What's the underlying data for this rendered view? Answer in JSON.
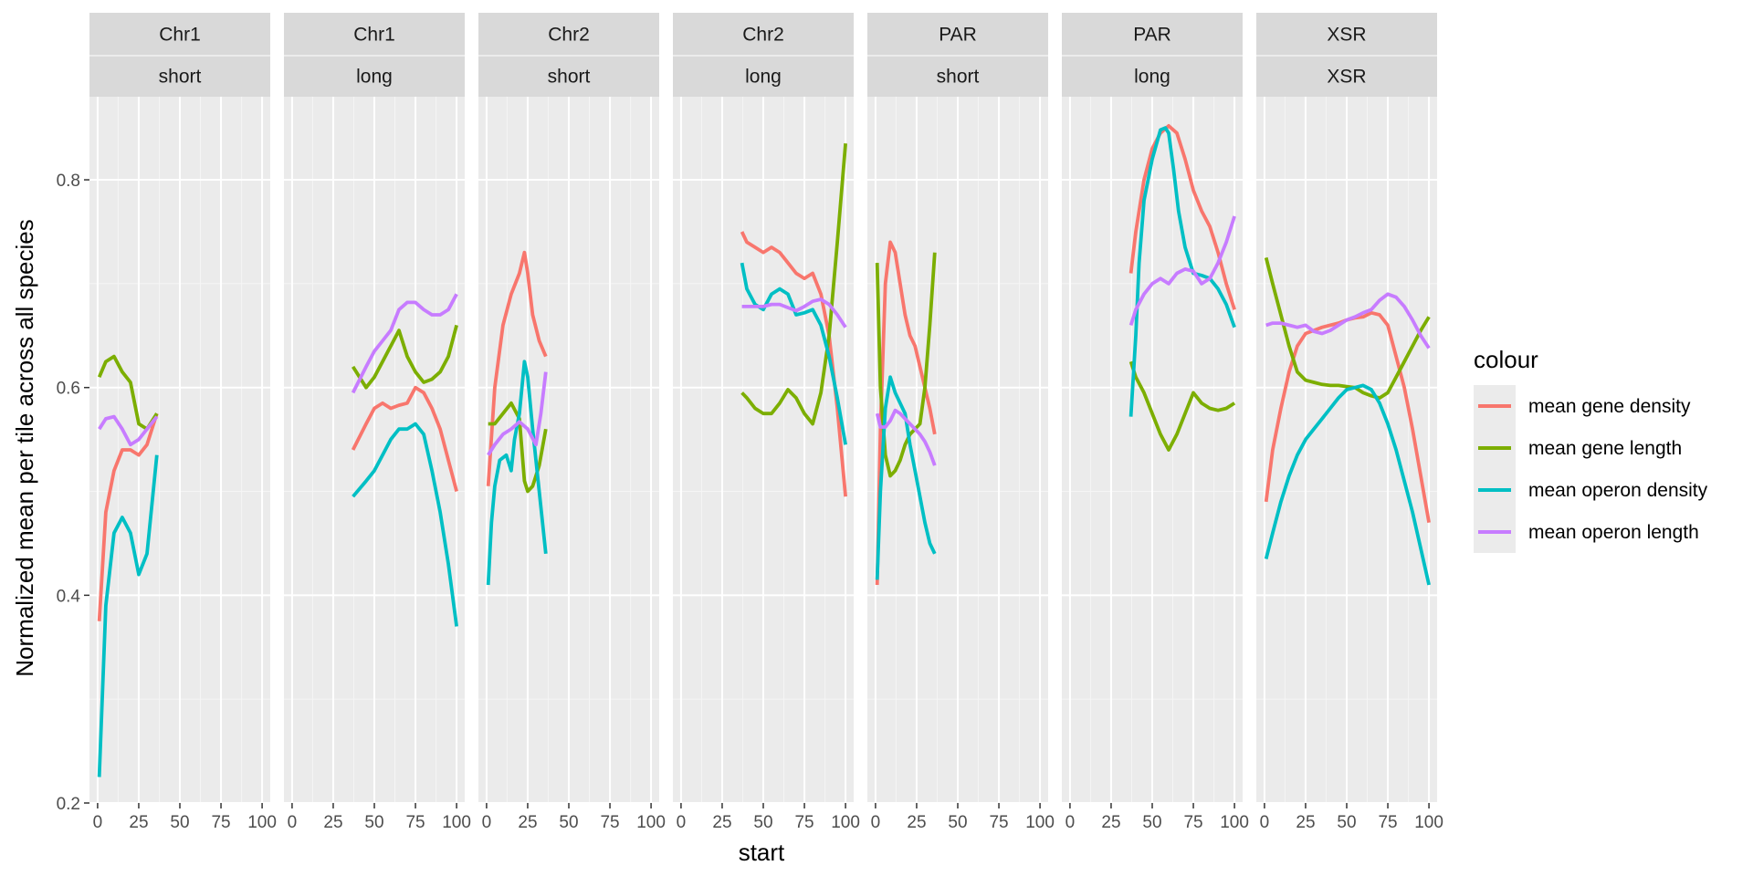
{
  "chart_data": {
    "type": "line",
    "xlabel": "start",
    "ylabel": "Normalized mean per tile across all species",
    "xlim": [
      0,
      100
    ],
    "ylim": [
      0.2,
      0.88
    ],
    "x_ticks": [
      0,
      25,
      50,
      75,
      100
    ],
    "x_tick_labels": [
      "0",
      "25",
      "50",
      "75",
      "100"
    ],
    "y_ticks": [
      0.2,
      0.4,
      0.6,
      0.8
    ],
    "y_tick_labels": [
      "0.2",
      "0.4",
      "0.6",
      "0.8"
    ],
    "grid": true,
    "legend_placement": "right",
    "legend": {
      "title": "colour",
      "entries": [
        {
          "label": "mean gene density",
          "color": "#F8766D"
        },
        {
          "label": "mean gene length",
          "color": "#7CAE00"
        },
        {
          "label": "mean operon density",
          "color": "#00BFC4"
        },
        {
          "label": "mean operon length",
          "color": "#C77CFF"
        }
      ]
    },
    "panels": [
      {
        "strip_top": "Chr1",
        "strip_bottom": "short",
        "series": [
          {
            "name": "mean gene density",
            "x": [
              1,
              5,
              10,
              15,
              20,
              25,
              30,
              36
            ],
            "y": [
              0.375,
              0.48,
              0.52,
              0.54,
              0.54,
              0.535,
              0.545,
              0.575
            ]
          },
          {
            "name": "mean gene length",
            "x": [
              1,
              5,
              10,
              15,
              20,
              25,
              30,
              36
            ],
            "y": [
              0.61,
              0.625,
              0.63,
              0.615,
              0.605,
              0.565,
              0.56,
              0.575
            ]
          },
          {
            "name": "mean operon density",
            "x": [
              1,
              5,
              10,
              15,
              20,
              25,
              30,
              36
            ],
            "y": [
              0.225,
              0.39,
              0.46,
              0.475,
              0.46,
              0.42,
              0.44,
              0.535
            ]
          },
          {
            "name": "mean operon length",
            "x": [
              1,
              5,
              10,
              15,
              20,
              25,
              30,
              36
            ],
            "y": [
              0.56,
              0.57,
              0.572,
              0.56,
              0.545,
              0.55,
              0.56,
              0.572
            ]
          }
        ]
      },
      {
        "strip_top": "Chr1",
        "strip_bottom": "long",
        "series": [
          {
            "name": "mean gene density",
            "x": [
              37,
              45,
              50,
              55,
              60,
              65,
              70,
              75,
              80,
              85,
              90,
              95,
              100
            ],
            "y": [
              0.54,
              0.565,
              0.58,
              0.585,
              0.58,
              0.583,
              0.585,
              0.6,
              0.595,
              0.58,
              0.56,
              0.53,
              0.5
            ]
          },
          {
            "name": "mean gene length",
            "x": [
              37,
              45,
              50,
              55,
              60,
              65,
              70,
              75,
              80,
              85,
              90,
              95,
              100
            ],
            "y": [
              0.62,
              0.6,
              0.61,
              0.625,
              0.64,
              0.655,
              0.63,
              0.615,
              0.605,
              0.608,
              0.615,
              0.63,
              0.66
            ]
          },
          {
            "name": "mean operon density",
            "x": [
              37,
              45,
              50,
              55,
              60,
              65,
              70,
              75,
              80,
              85,
              90,
              95,
              100
            ],
            "y": [
              0.495,
              0.51,
              0.52,
              0.535,
              0.55,
              0.56,
              0.56,
              0.565,
              0.555,
              0.52,
              0.48,
              0.43,
              0.37
            ]
          },
          {
            "name": "mean operon length",
            "x": [
              37,
              45,
              50,
              55,
              60,
              65,
              70,
              75,
              80,
              85,
              90,
              95,
              100
            ],
            "y": [
              0.595,
              0.62,
              0.635,
              0.645,
              0.655,
              0.675,
              0.682,
              0.682,
              0.675,
              0.67,
              0.67,
              0.675,
              0.69
            ]
          }
        ]
      },
      {
        "strip_top": "Chr2",
        "strip_bottom": "short",
        "series": [
          {
            "name": "mean gene density",
            "x": [
              1,
              5,
              10,
              15,
              20,
              23,
              25,
              28,
              32,
              36
            ],
            "y": [
              0.505,
              0.6,
              0.66,
              0.69,
              0.71,
              0.73,
              0.71,
              0.67,
              0.645,
              0.63
            ]
          },
          {
            "name": "mean gene length",
            "x": [
              1,
              5,
              10,
              15,
              20,
              23,
              25,
              28,
              32,
              36
            ],
            "y": [
              0.565,
              0.565,
              0.575,
              0.585,
              0.57,
              0.51,
              0.5,
              0.505,
              0.525,
              0.56
            ]
          },
          {
            "name": "mean operon density",
            "x": [
              1,
              3,
              5,
              8,
              12,
              15,
              17,
              20,
              23,
              25,
              28,
              32,
              36
            ],
            "y": [
              0.41,
              0.47,
              0.505,
              0.53,
              0.535,
              0.52,
              0.55,
              0.575,
              0.625,
              0.61,
              0.56,
              0.5,
              0.44
            ]
          },
          {
            "name": "mean operon length",
            "x": [
              1,
              5,
              10,
              15,
              20,
              25,
              30,
              33,
              36
            ],
            "y": [
              0.535,
              0.545,
              0.555,
              0.56,
              0.567,
              0.56,
              0.545,
              0.575,
              0.615
            ]
          }
        ]
      },
      {
        "strip_top": "Chr2",
        "strip_bottom": "long",
        "series": [
          {
            "name": "mean gene density",
            "x": [
              37,
              40,
              45,
              50,
              55,
              60,
              65,
              70,
              75,
              80,
              85,
              90,
              95,
              100
            ],
            "y": [
              0.75,
              0.74,
              0.735,
              0.73,
              0.735,
              0.73,
              0.72,
              0.71,
              0.705,
              0.71,
              0.69,
              0.65,
              0.58,
              0.495
            ]
          },
          {
            "name": "mean gene length",
            "x": [
              37,
              40,
              45,
              50,
              55,
              60,
              65,
              70,
              75,
              80,
              85,
              90,
              95,
              100
            ],
            "y": [
              0.595,
              0.59,
              0.58,
              0.575,
              0.575,
              0.585,
              0.598,
              0.59,
              0.575,
              0.565,
              0.595,
              0.65,
              0.74,
              0.835
            ]
          },
          {
            "name": "mean operon density",
            "x": [
              37,
              40,
              45,
              50,
              55,
              60,
              65,
              70,
              75,
              80,
              85,
              90,
              95,
              100
            ],
            "y": [
              0.72,
              0.695,
              0.68,
              0.675,
              0.69,
              0.695,
              0.69,
              0.67,
              0.672,
              0.675,
              0.66,
              0.63,
              0.59,
              0.545
            ]
          },
          {
            "name": "mean operon length",
            "x": [
              37,
              45,
              50,
              55,
              60,
              65,
              70,
              75,
              80,
              85,
              90,
              95,
              100
            ],
            "y": [
              0.678,
              0.678,
              0.678,
              0.68,
              0.68,
              0.677,
              0.674,
              0.678,
              0.683,
              0.685,
              0.68,
              0.67,
              0.658
            ]
          }
        ]
      },
      {
        "strip_top": "PAR",
        "strip_bottom": "short",
        "series": [
          {
            "name": "mean gene density",
            "x": [
              1,
              3,
              6,
              9,
              12,
              15,
              18,
              21,
              24,
              27,
              30,
              33,
              36
            ],
            "y": [
              0.41,
              0.56,
              0.7,
              0.74,
              0.73,
              0.7,
              0.67,
              0.65,
              0.64,
              0.62,
              0.6,
              0.58,
              0.555
            ]
          },
          {
            "name": "mean gene length",
            "x": [
              1,
              3,
              6,
              9,
              12,
              15,
              18,
              21,
              24,
              27,
              30,
              33,
              36
            ],
            "y": [
              0.72,
              0.6,
              0.535,
              0.515,
              0.52,
              0.53,
              0.545,
              0.555,
              0.56,
              0.565,
              0.6,
              0.66,
              0.73
            ]
          },
          {
            "name": "mean operon density",
            "x": [
              1,
              3,
              6,
              9,
              12,
              15,
              18,
              21,
              24,
              27,
              30,
              33,
              36
            ],
            "y": [
              0.415,
              0.5,
              0.58,
              0.61,
              0.595,
              0.585,
              0.575,
              0.545,
              0.52,
              0.495,
              0.47,
              0.45,
              0.44
            ]
          },
          {
            "name": "mean operon length",
            "x": [
              1,
              3,
              6,
              9,
              12,
              15,
              18,
              21,
              24,
              27,
              30,
              33,
              36
            ],
            "y": [
              0.575,
              0.562,
              0.562,
              0.568,
              0.578,
              0.575,
              0.57,
              0.565,
              0.56,
              0.555,
              0.548,
              0.538,
              0.525
            ]
          }
        ]
      },
      {
        "strip_top": "PAR",
        "strip_bottom": "long",
        "series": [
          {
            "name": "mean gene density",
            "x": [
              37,
              40,
              45,
              50,
              55,
              60,
              65,
              70,
              75,
              80,
              85,
              90,
              95,
              100
            ],
            "y": [
              0.71,
              0.75,
              0.8,
              0.83,
              0.845,
              0.852,
              0.845,
              0.82,
              0.79,
              0.77,
              0.755,
              0.73,
              0.7,
              0.675
            ]
          },
          {
            "name": "mean gene length",
            "x": [
              37,
              40,
              45,
              50,
              55,
              60,
              65,
              70,
              75,
              80,
              85,
              90,
              95,
              100
            ],
            "y": [
              0.625,
              0.61,
              0.595,
              0.575,
              0.555,
              0.54,
              0.555,
              0.575,
              0.595,
              0.585,
              0.58,
              0.578,
              0.58,
              0.585
            ]
          },
          {
            "name": "mean operon density",
            "x": [
              37,
              40,
              42,
              45,
              50,
              55,
              58,
              60,
              63,
              66,
              70,
              75,
              80,
              85,
              90,
              95,
              100
            ],
            "y": [
              0.572,
              0.65,
              0.72,
              0.78,
              0.82,
              0.848,
              0.85,
              0.845,
              0.81,
              0.77,
              0.735,
              0.71,
              0.708,
              0.705,
              0.695,
              0.68,
              0.658
            ]
          },
          {
            "name": "mean operon length",
            "x": [
              37,
              40,
              45,
              50,
              55,
              60,
              65,
              70,
              75,
              80,
              85,
              90,
              95,
              100
            ],
            "y": [
              0.66,
              0.675,
              0.69,
              0.7,
              0.705,
              0.7,
              0.71,
              0.714,
              0.712,
              0.7,
              0.705,
              0.72,
              0.74,
              0.765
            ]
          }
        ]
      },
      {
        "strip_top": "XSR",
        "strip_bottom": "XSR",
        "series": [
          {
            "name": "mean gene density",
            "x": [
              1,
              5,
              10,
              15,
              20,
              25,
              30,
              35,
              40,
              45,
              50,
              55,
              60,
              65,
              70,
              75,
              80,
              85,
              90,
              95,
              100
            ],
            "y": [
              0.49,
              0.54,
              0.58,
              0.615,
              0.64,
              0.652,
              0.655,
              0.658,
              0.66,
              0.662,
              0.665,
              0.667,
              0.668,
              0.672,
              0.67,
              0.66,
              0.63,
              0.6,
              0.56,
              0.515,
              0.47
            ]
          },
          {
            "name": "mean gene length",
            "x": [
              1,
              5,
              10,
              15,
              20,
              25,
              30,
              35,
              40,
              45,
              50,
              55,
              60,
              65,
              70,
              75,
              80,
              85,
              90,
              95,
              100
            ],
            "y": [
              0.725,
              0.7,
              0.67,
              0.64,
              0.615,
              0.607,
              0.605,
              0.603,
              0.602,
              0.602,
              0.601,
              0.6,
              0.595,
              0.592,
              0.59,
              0.595,
              0.61,
              0.625,
              0.64,
              0.655,
              0.668
            ]
          },
          {
            "name": "mean operon density",
            "x": [
              1,
              5,
              10,
              15,
              20,
              25,
              30,
              35,
              40,
              45,
              50,
              55,
              60,
              65,
              70,
              75,
              80,
              85,
              90,
              95,
              100
            ],
            "y": [
              0.435,
              0.46,
              0.49,
              0.515,
              0.535,
              0.55,
              0.56,
              0.57,
              0.58,
              0.59,
              0.598,
              0.6,
              0.602,
              0.598,
              0.585,
              0.565,
              0.54,
              0.51,
              0.48,
              0.445,
              0.41
            ]
          },
          {
            "name": "mean operon length",
            "x": [
              1,
              5,
              10,
              15,
              20,
              25,
              30,
              35,
              40,
              45,
              50,
              55,
              60,
              65,
              70,
              75,
              80,
              85,
              90,
              95,
              100
            ],
            "y": [
              0.66,
              0.662,
              0.662,
              0.66,
              0.658,
              0.66,
              0.654,
              0.652,
              0.655,
              0.66,
              0.665,
              0.668,
              0.672,
              0.675,
              0.684,
              0.69,
              0.687,
              0.678,
              0.665,
              0.65,
              0.638
            ]
          }
        ]
      }
    ]
  }
}
